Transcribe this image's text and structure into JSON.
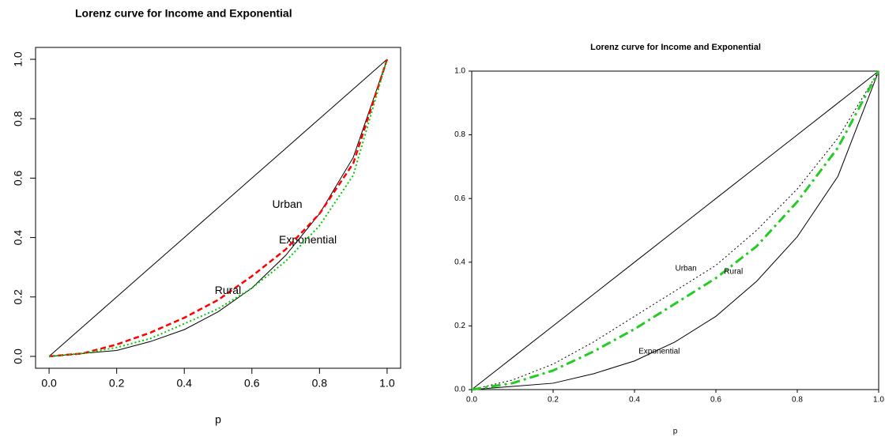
{
  "chart_data": [
    {
      "type": "line",
      "title": "Lorenz curve for Income and Exponential",
      "xlabel": "p",
      "x": [
        0,
        0.1,
        0.2,
        0.3,
        0.4,
        0.5,
        0.6,
        0.7,
        0.8,
        0.9,
        1
      ],
      "series": [
        {
          "color": "#000000",
          "style": "solid",
          "width": 1,
          "values": [
            0,
            0.1,
            0.2,
            0.3,
            0.4,
            0.5,
            0.6,
            0.7,
            0.8,
            0.9,
            1
          ]
        },
        {
          "name": "Exponential",
          "color": "#000000",
          "style": "solid",
          "width": 1,
          "values": [
            0,
            0.01,
            0.02,
            0.05,
            0.09,
            0.15,
            0.23,
            0.34,
            0.48,
            0.67,
            1
          ]
        },
        {
          "name": "Urban",
          "color": "#ff0000",
          "style": "dashed",
          "width": 2.5,
          "values": [
            0,
            0.01,
            0.04,
            0.08,
            0.13,
            0.19,
            0.27,
            0.36,
            0.48,
            0.65,
            1
          ]
        },
        {
          "name": "Rural",
          "color": "#00cc00",
          "style": "dotted",
          "width": 2,
          "values": [
            0,
            0.01,
            0.03,
            0.06,
            0.11,
            0.16,
            0.23,
            0.32,
            0.44,
            0.61,
            1
          ]
        }
      ],
      "xlim": [
        -0.04,
        1.04
      ],
      "ylim": [
        -0.04,
        1.04
      ],
      "xticks": [
        {
          "value": 0,
          "label": "0.0"
        },
        0.2,
        0.4,
        0.6,
        0.8,
        {
          "value": 1,
          "label": "1.0"
        }
      ],
      "yticks": [
        {
          "value": 0,
          "label": "0.0"
        },
        0.2,
        0.4,
        0.6,
        0.8,
        {
          "value": 1,
          "label": "1.0"
        }
      ]
    },
    {
      "type": "line",
      "title": "Lorenz curve for Income and Exponential",
      "xlabel": "p",
      "x": [
        0,
        0.1,
        0.2,
        0.3,
        0.4,
        0.5,
        0.6,
        0.7,
        0.8,
        0.9,
        1
      ],
      "series": [
        {
          "color": "#000000",
          "style": "solid",
          "width": 1,
          "values": [
            0,
            0.1,
            0.2,
            0.3,
            0.4,
            0.5,
            0.6,
            0.7,
            0.8,
            0.9,
            1
          ]
        },
        {
          "name": "Exponential",
          "color": "#000000",
          "style": "solid",
          "width": 1,
          "values": [
            0,
            0.01,
            0.02,
            0.05,
            0.09,
            0.15,
            0.23,
            0.34,
            0.48,
            0.67,
            1
          ]
        },
        {
          "name": "Urban",
          "color": "#000000",
          "style": "dotted",
          "width": 1,
          "values": [
            0,
            0.03,
            0.08,
            0.15,
            0.23,
            0.31,
            0.39,
            0.5,
            0.63,
            0.79,
            1
          ]
        },
        {
          "name": "Rural",
          "color": "#22cc22",
          "style": "dashdot",
          "width": 3,
          "values": [
            0,
            0.02,
            0.06,
            0.12,
            0.19,
            0.27,
            0.35,
            0.45,
            0.59,
            0.76,
            1
          ]
        }
      ],
      "xlim": [
        0,
        1
      ],
      "ylim": [
        0,
        1
      ],
      "xticks": [
        {
          "value": 0,
          "label": "0.0"
        },
        0.2,
        0.4,
        0.6,
        0.8,
        {
          "value": 1,
          "label": "1.0"
        }
      ],
      "yticks": [
        {
          "value": 0,
          "label": "0.0"
        },
        0.2,
        0.4,
        0.6,
        0.8,
        {
          "value": 1,
          "label": "1.0"
        }
      ]
    }
  ]
}
